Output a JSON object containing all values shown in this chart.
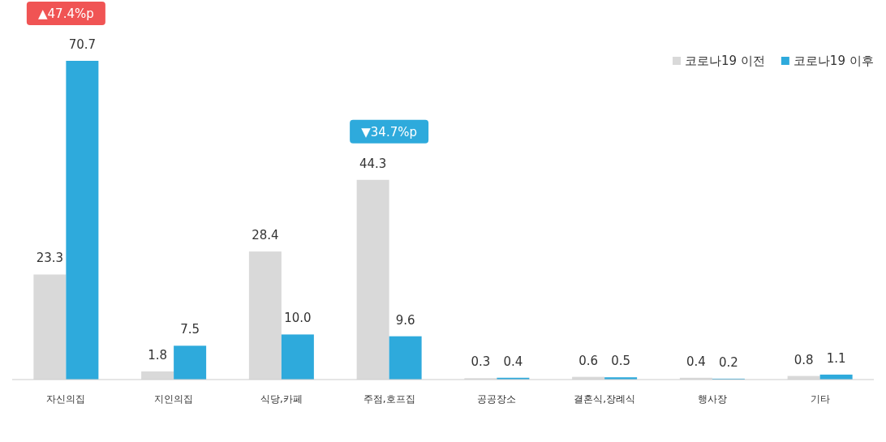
{
  "chart_data": {
    "type": "bar",
    "categories": [
      "자신의집",
      "지인의집",
      "식당,카페",
      "주점,호프집",
      "공공장소",
      "결혼식,장례식",
      "행사장",
      "기타"
    ],
    "series": [
      {
        "name": "코로나19 이전",
        "color": "#d9d9d9",
        "values": [
          23.3,
          1.8,
          28.4,
          44.3,
          0.3,
          0.6,
          0.4,
          0.8
        ],
        "value_labels": [
          "23.3",
          "1.8",
          "28.4",
          "44.3",
          "0.3",
          "0.6",
          "0.4",
          "0.8"
        ]
      },
      {
        "name": "코로나19 이후",
        "color": "#2eaadc",
        "values": [
          70.7,
          7.5,
          10.0,
          9.6,
          0.4,
          0.5,
          0.2,
          1.1
        ],
        "value_labels": [
          "70.7",
          "7.5",
          "10.0",
          "9.6",
          "0.4",
          "0.5",
          "0.2",
          "1.1"
        ]
      }
    ],
    "legend": "top right",
    "annotations": [
      "▲47.4%p",
      "▼34.7%p"
    ]
  }
}
